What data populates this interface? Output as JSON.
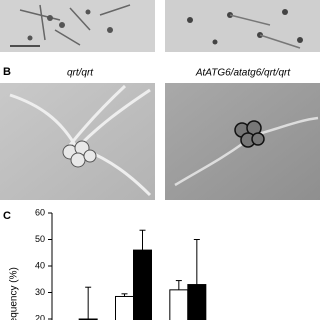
{
  "panels": {
    "b": "B",
    "c": "C"
  },
  "captions": [
    "qrt/qrt",
    "AtATG6/atatg6/qrt/qrt"
  ],
  "chart_data": {
    "type": "bar",
    "y_label": "Frequency (%)",
    "categories": [
      null,
      null,
      null
    ],
    "series": [
      {
        "color": "#ffffff",
        "values": [
          null,
          28.5,
          31
        ],
        "errors": [
          null,
          1,
          3.5
        ]
      },
      {
        "color": "#000000",
        "values": [
          20,
          46,
          33
        ],
        "errors": [
          12,
          7.5,
          17
        ]
      }
    ],
    "ylim": [
      20,
      60
    ],
    "yticks": [
      20,
      30,
      40,
      50,
      60
    ]
  }
}
